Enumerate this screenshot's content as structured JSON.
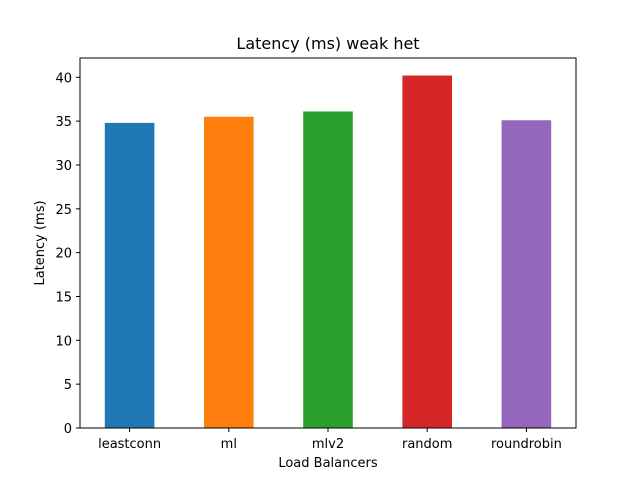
{
  "chart_data": {
    "type": "bar",
    "title": "Latency (ms) weak het",
    "xlabel": "Load Balancers",
    "ylabel": "Latency (ms)",
    "categories": [
      "leastconn",
      "ml",
      "mlv2",
      "random",
      "roundrobin"
    ],
    "values": [
      34.8,
      35.5,
      36.1,
      40.2,
      35.1
    ],
    "colors": [
      "#1f77b4",
      "#ff7f0e",
      "#2ca02c",
      "#d62728",
      "#9467bd"
    ],
    "ylim": [
      0,
      42.2
    ],
    "yticks": [
      0,
      5,
      10,
      15,
      20,
      25,
      30,
      35,
      40
    ],
    "grid": false,
    "legend": "none"
  }
}
